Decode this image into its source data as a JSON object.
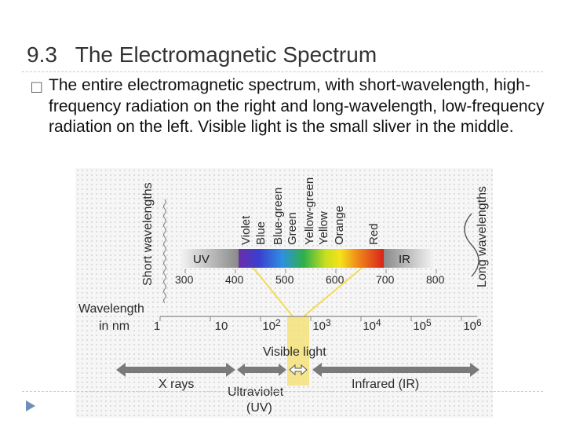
{
  "slide": {
    "title": "9.3   The Electromagnetic Spectrum",
    "bullet_marker": "□",
    "bullet_text": "The entire electromagnetic spectrum, with short-wavelength, high-frequency radiation on the right and long-wavelength, low-frequency radiation on the left. Visible light is the small sliver in the middle."
  },
  "figure": {
    "short_label": "Short wavelengths",
    "long_label": "Long wavelengths",
    "color_names": [
      "Violet",
      "Blue",
      "Blue-green",
      "Green",
      "Yellow-green",
      "Yellow",
      "Orange",
      "Red"
    ],
    "uv_label": "UV",
    "ir_label": "IR",
    "scale_ticks": [
      "300",
      "400",
      "500",
      "600",
      "700",
      "800"
    ],
    "wavelength_label_line1": "Wavelength",
    "wavelength_label_line2": "in nm",
    "log_ticks": [
      {
        "base": "1",
        "exp": ""
      },
      {
        "base": "10",
        "exp": ""
      },
      {
        "base": "10",
        "exp": "2"
      },
      {
        "base": "10",
        "exp": "3"
      },
      {
        "base": "10",
        "exp": "4"
      },
      {
        "base": "10",
        "exp": "5"
      },
      {
        "base": "10",
        "exp": "6"
      }
    ],
    "visible_label": "Visible light",
    "xrays_label": "X rays",
    "uv_band_label_line1": "Ultraviolet",
    "uv_band_label_line2": "(UV)",
    "ir_band_label": "Infrared (IR)",
    "colors": {
      "violet": "#7b3fb0",
      "blue": "#2f63d8",
      "green": "#3cae3a",
      "yellow": "#f3e21b",
      "orange": "#f08a1a",
      "red": "#d8221a",
      "highlight": "#f5e27a",
      "band_gray": "#8c8c8c"
    }
  }
}
